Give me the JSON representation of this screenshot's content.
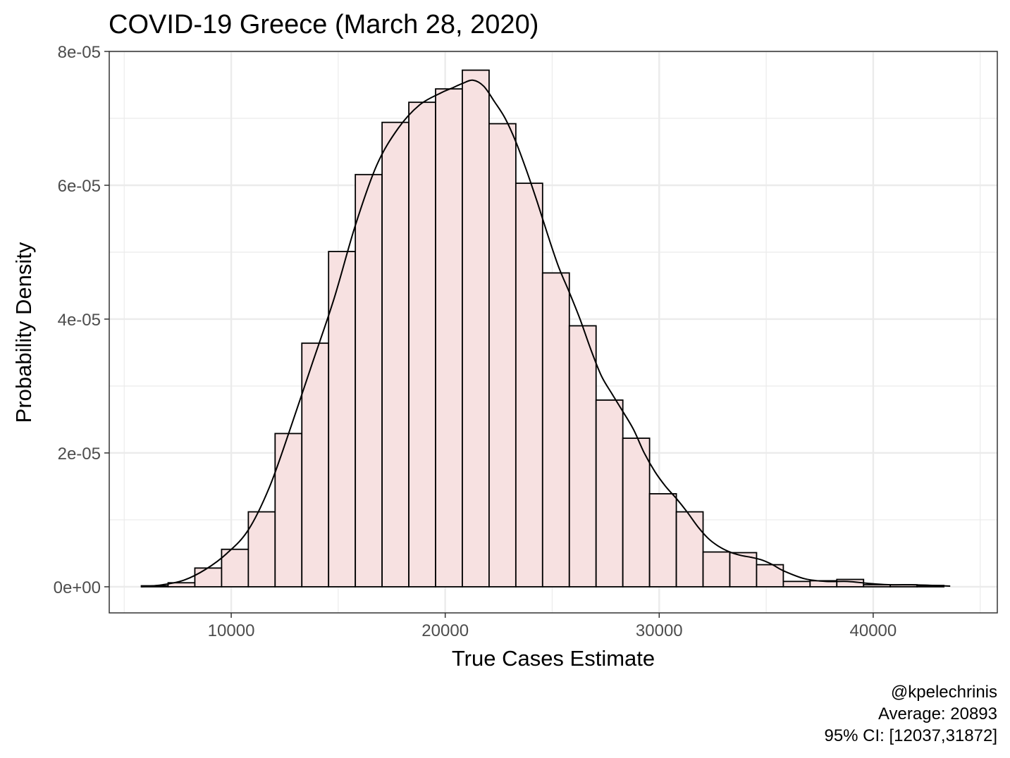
{
  "chart_data": {
    "type": "histogram",
    "title": "COVID-19 Greece (March 28, 2020)",
    "xlabel": "True Cases Estimate",
    "ylabel": "Probability Density",
    "xlim": [
      4300,
      45800
    ],
    "ylim": [
      -3.9e-06,
      8e-05
    ],
    "x_ticks": [
      10000,
      20000,
      30000,
      40000
    ],
    "x_tick_labels": [
      "10000",
      "20000",
      "30000",
      "40000"
    ],
    "y_ticks": [
      0,
      2e-05,
      4e-05,
      6e-05,
      8e-05
    ],
    "y_tick_labels": [
      "0e+00",
      "2e-05",
      "4e-05",
      "6e-05",
      "8e-05"
    ],
    "grid": true,
    "bar_fill": "#f7e1e1",
    "bar_stroke": "#000000",
    "density_line_color": "#000000",
    "bins": [
      {
        "x0": 5800,
        "x1": 7050,
        "y": 1.5e-07
      },
      {
        "x0": 7050,
        "x1": 8300,
        "y": 6e-07
      },
      {
        "x0": 8300,
        "x1": 9550,
        "y": 2.8e-06
      },
      {
        "x0": 9550,
        "x1": 10800,
        "y": 5.6e-06
      },
      {
        "x0": 10800,
        "x1": 12050,
        "y": 1.12e-05
      },
      {
        "x0": 12050,
        "x1": 13300,
        "y": 2.29e-05
      },
      {
        "x0": 13300,
        "x1": 14550,
        "y": 3.64e-05
      },
      {
        "x0": 14550,
        "x1": 15800,
        "y": 5.01e-05
      },
      {
        "x0": 15800,
        "x1": 17050,
        "y": 6.16e-05
      },
      {
        "x0": 17050,
        "x1": 18300,
        "y": 6.94e-05
      },
      {
        "x0": 18300,
        "x1": 19550,
        "y": 7.24e-05
      },
      {
        "x0": 19550,
        "x1": 20800,
        "y": 7.44e-05
      },
      {
        "x0": 20800,
        "x1": 22050,
        "y": 7.72e-05
      },
      {
        "x0": 22050,
        "x1": 23300,
        "y": 6.92e-05
      },
      {
        "x0": 23300,
        "x1": 24550,
        "y": 6.03e-05
      },
      {
        "x0": 24550,
        "x1": 25800,
        "y": 4.69e-05
      },
      {
        "x0": 25800,
        "x1": 27050,
        "y": 3.9e-05
      },
      {
        "x0": 27050,
        "x1": 28300,
        "y": 2.79e-05
      },
      {
        "x0": 28300,
        "x1": 29550,
        "y": 2.22e-05
      },
      {
        "x0": 29550,
        "x1": 30800,
        "y": 1.39e-05
      },
      {
        "x0": 30800,
        "x1": 32050,
        "y": 1.12e-05
      },
      {
        "x0": 32050,
        "x1": 33300,
        "y": 5.2e-06
      },
      {
        "x0": 33300,
        "x1": 34550,
        "y": 5.1e-06
      },
      {
        "x0": 34550,
        "x1": 35800,
        "y": 3.3e-06
      },
      {
        "x0": 35800,
        "x1": 37050,
        "y": 8e-07
      },
      {
        "x0": 37050,
        "x1": 38300,
        "y": 9e-07
      },
      {
        "x0": 38300,
        "x1": 39550,
        "y": 1.1e-06
      },
      {
        "x0": 39550,
        "x1": 40800,
        "y": 3e-07
      },
      {
        "x0": 40800,
        "x1": 42050,
        "y": 3e-07
      },
      {
        "x0": 42050,
        "x1": 43300,
        "y": 2e-07
      }
    ],
    "density_curve": {
      "x": [
        5800,
        6800,
        7800,
        8800,
        9800,
        10800,
        11800,
        12800,
        13800,
        14800,
        15800,
        16800,
        17800,
        18800,
        19800,
        20300,
        20800,
        21300,
        21800,
        22300,
        22800,
        23300,
        23800,
        24300,
        24800,
        25300,
        25800,
        26300,
        26800,
        27300,
        27800,
        28300,
        28800,
        29300,
        29800,
        30300,
        30800,
        31300,
        31800,
        32300,
        32800,
        33300,
        33800,
        34300,
        34800,
        35300,
        35800,
        36800,
        37800,
        38800,
        39800,
        40800,
        41800,
        42800,
        43600
      ],
      "y": [
        0.0,
        3e-07,
        1e-06,
        2.6e-06,
        5e-06,
        8.5e-06,
        1.5e-05,
        2.4e-05,
        3.35e-05,
        4.3e-05,
        5.4e-05,
        6.3e-05,
        6.85e-05,
        7.2e-05,
        7.38e-05,
        7.45e-05,
        7.52e-05,
        7.57e-05,
        7.48e-05,
        7.25e-05,
        7e-05,
        6.65e-05,
        6.22e-05,
        5.75e-05,
        5.25e-05,
        4.78e-05,
        4.4e-05,
        4e-05,
        3.55e-05,
        3.15e-05,
        2.88e-05,
        2.62e-05,
        2.35e-05,
        2e-05,
        1.72e-05,
        1.5e-05,
        1.32e-05,
        1.12e-05,
        9e-06,
        7.2e-06,
        6e-06,
        5.2e-06,
        4.7e-06,
        4.4e-06,
        4e-06,
        3.3e-06,
        2.4e-06,
        1.2e-06,
        8e-07,
        8e-07,
        5e-07,
        3e-07,
        3e-07,
        2e-07,
        1e-07
      ]
    },
    "caption": [
      "@kpelechrinis",
      "Average: 20893",
      "95% CI: [12037,31872]"
    ]
  }
}
